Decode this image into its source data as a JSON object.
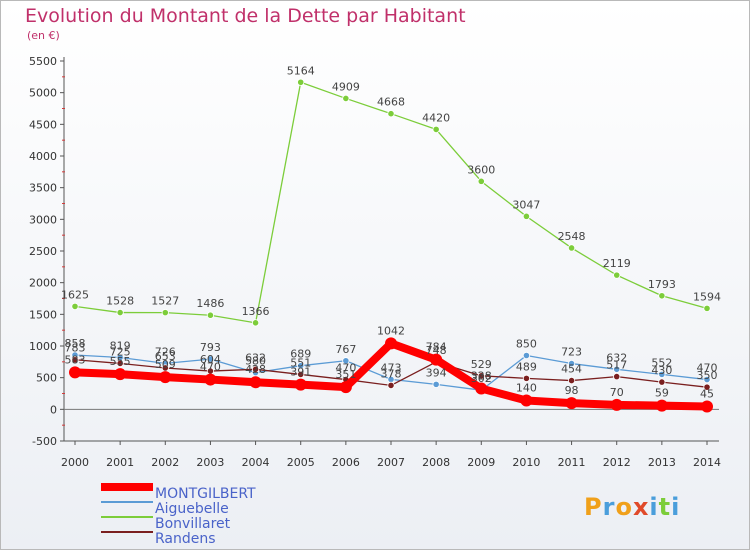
{
  "title": "Evolution du Montant de la Dette par Habitant",
  "subtitle": "(en €)",
  "logo": "Proxiti",
  "chart_data": {
    "type": "line",
    "title": "Evolution du Montant de la Dette par Habitant",
    "ylabel": "(en €)",
    "x": [
      "2000",
      "2001",
      "2002",
      "2003",
      "2004",
      "2005",
      "2006",
      "2007",
      "2008",
      "2009",
      "2010",
      "2011",
      "2012",
      "2013",
      "2014"
    ],
    "y_ticks": [
      "-500",
      "0",
      "500",
      "1000",
      "1500",
      "2000",
      "2500",
      "3000",
      "3500",
      "4000",
      "4500",
      "5000",
      "5500"
    ],
    "ylim": [
      -500,
      5500
    ],
    "grid": false,
    "legend_position": "bottom-left",
    "series": [
      {
        "name": "MONTGILBERT",
        "color": "#ff0000",
        "values": [
          583,
          555,
          509,
          470,
          428,
          391,
          351,
          1042,
          784,
          328,
          140,
          98,
          70,
          59,
          45
        ]
      },
      {
        "name": "Aiguebelle",
        "color": "#5b9bd5",
        "values": [
          858,
          819,
          726,
          793,
          580,
          689,
          767,
          473,
          394,
          302,
          850,
          723,
          632,
          552,
          470
        ]
      },
      {
        "name": "Bonvillaret",
        "color": "#7ccd3a",
        "values": [
          1625,
          1528,
          1527,
          1486,
          1366,
          5164,
          4909,
          4668,
          4420,
          3600,
          3047,
          2548,
          2119,
          1793,
          1594
        ]
      },
      {
        "name": "Randens",
        "color": "#7a1f1f",
        "values": [
          783,
          725,
          653,
          604,
          632,
          551,
          470,
          378,
          748,
          529,
          489,
          454,
          517,
          430,
          350
        ]
      }
    ]
  }
}
